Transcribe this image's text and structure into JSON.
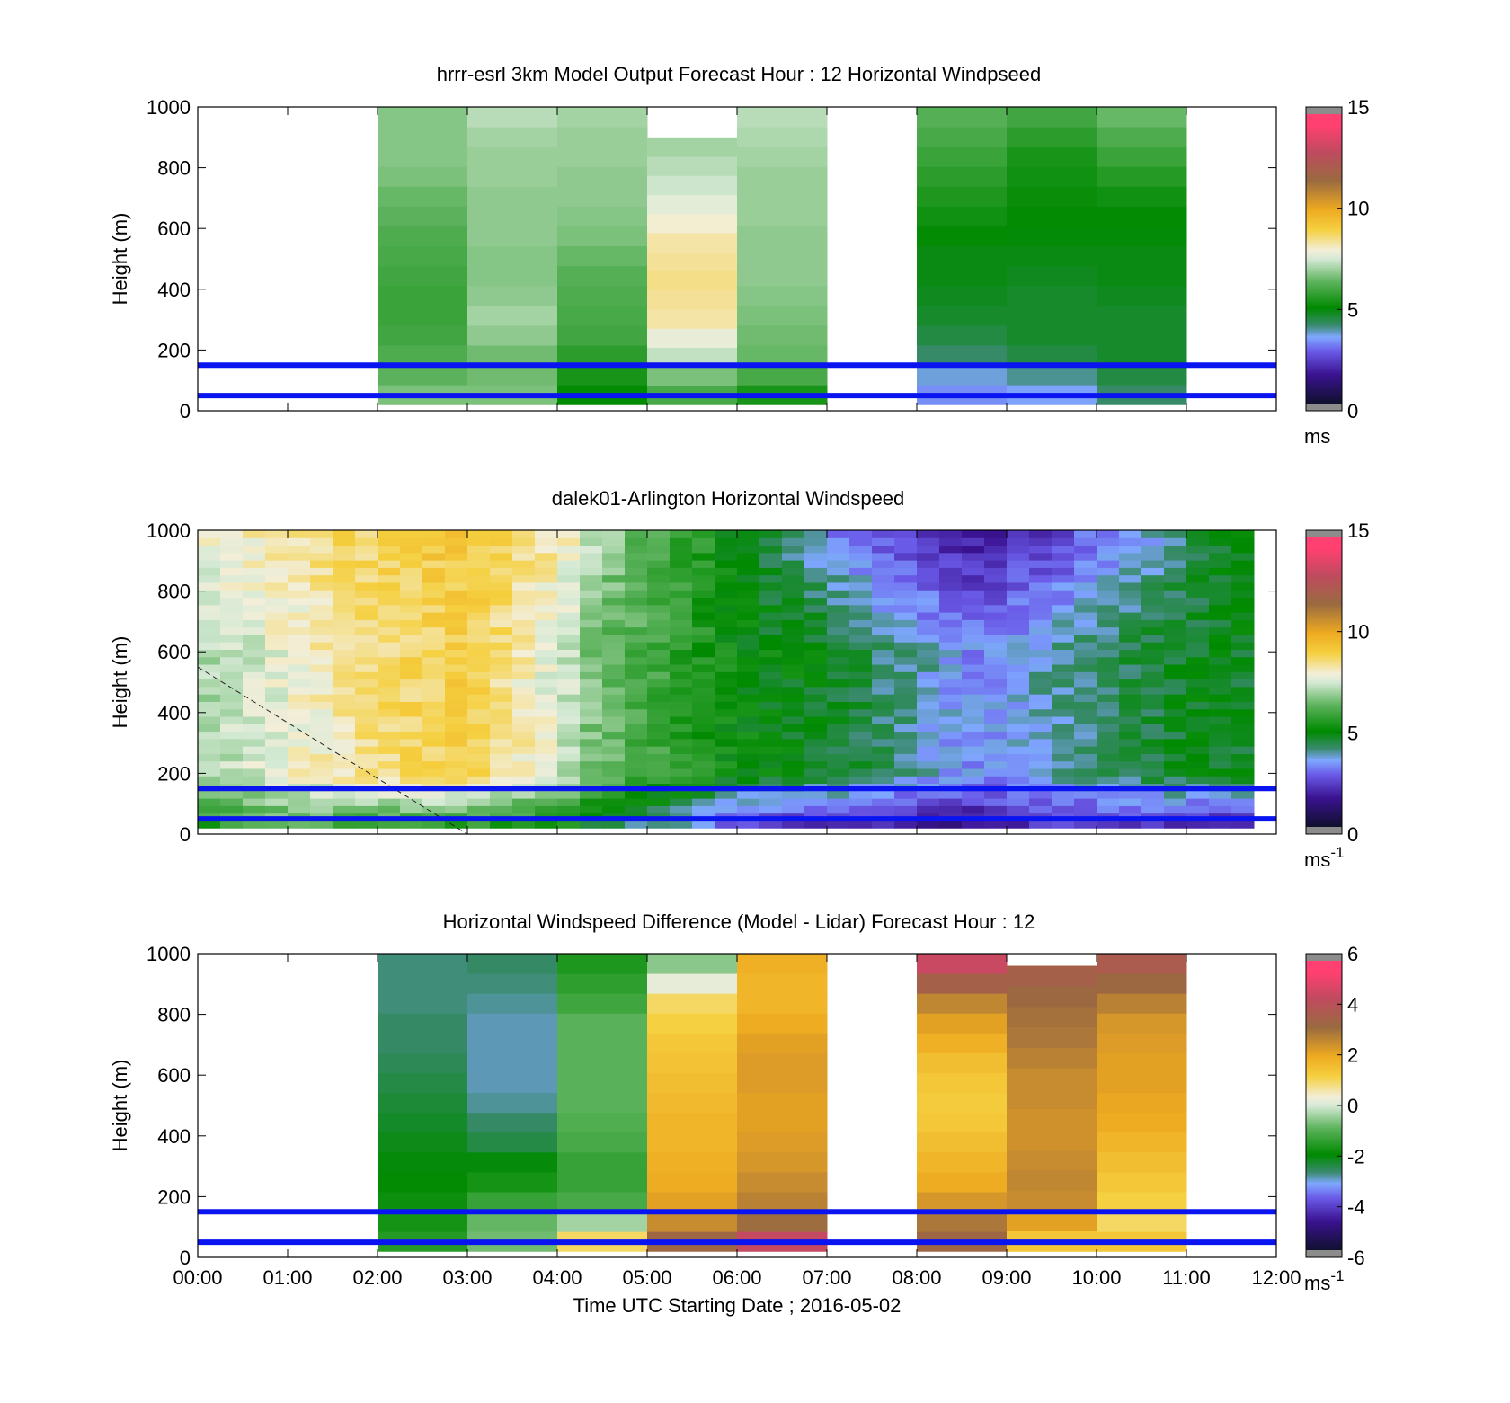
{
  "figure": {
    "xlabel": "Time UTC  Starting Date ; 2016-05-02",
    "x_tick_labels": [
      "00:00",
      "01:00",
      "02:00",
      "03:00",
      "04:00",
      "05:00",
      "06:00",
      "07:00",
      "08:00",
      "09:00",
      "10:00",
      "11:00",
      "12:00"
    ]
  },
  "chart_data": [
    {
      "type": "heatmap",
      "title": "hrrr-esrl 3km Model Output   Forecast Hour : 12 Horizontal Windpseed",
      "ylabel": "Height (m)",
      "xlim_hours": [
        0,
        12
      ],
      "ylim": [
        0,
        1000
      ],
      "y_ticks": [
        0,
        200,
        400,
        600,
        800,
        1000
      ],
      "colorbar": {
        "min": 0,
        "max": 15,
        "ticks": [
          0,
          5,
          10,
          15
        ],
        "unit": "ms",
        "unit_sup": ""
      },
      "reference_lines_m": [
        50,
        150
      ],
      "columns": [
        {
          "start": 2,
          "end": 3,
          "top": 1000,
          "bottom": 20,
          "values": [
            6.6,
            6.3,
            6.1,
            5.9,
            5.8,
            5.8,
            5.9,
            6.0,
            6.1,
            6.3,
            6.4,
            6.6,
            6.7,
            6.7,
            6.7
          ]
        },
        {
          "start": 3,
          "end": 4,
          "top": 1000,
          "bottom": 20,
          "values": [
            6.6,
            6.5,
            6.5,
            6.8,
            7.0,
            6.8,
            6.7,
            6.7,
            6.8,
            6.8,
            6.8,
            6.9,
            6.9,
            7.0,
            7.2
          ]
        },
        {
          "start": 4,
          "end": 5,
          "top": 1000,
          "bottom": 20,
          "values": [
            5.0,
            5.3,
            5.6,
            5.9,
            6.0,
            6.1,
            6.2,
            6.4,
            6.6,
            6.7,
            6.8,
            6.8,
            6.9,
            6.9,
            7.0
          ]
        },
        {
          "start": 5,
          "end": 6,
          "top": 900,
          "bottom": 20,
          "values": [
            6.0,
            6.6,
            7.3,
            7.8,
            8.3,
            8.4,
            8.5,
            8.4,
            8.3,
            8.0,
            7.7,
            7.4,
            7.2,
            7.0
          ]
        },
        {
          "start": 6,
          "end": 7,
          "top": 1000,
          "bottom": 20,
          "values": [
            5.3,
            6.0,
            6.4,
            6.5,
            6.6,
            6.7,
            6.8,
            6.8,
            6.8,
            6.9,
            6.9,
            6.9,
            7.0,
            7.1,
            7.2
          ]
        },
        {
          "start": 8,
          "end": 9,
          "top": 1000,
          "bottom": 20,
          "values": [
            3.2,
            3.6,
            4.1,
            4.4,
            4.6,
            4.7,
            4.8,
            4.8,
            5.0,
            5.2,
            5.4,
            5.6,
            5.8,
            6.0,
            6.2
          ]
        },
        {
          "start": 9,
          "end": 10,
          "top": 1000,
          "bottom": 20,
          "values": [
            3.4,
            3.9,
            4.4,
            4.6,
            4.6,
            4.6,
            4.7,
            4.8,
            4.9,
            5.0,
            5.1,
            5.2,
            5.3,
            5.6,
            5.9
          ]
        },
        {
          "start": 10,
          "end": 11,
          "top": 1000,
          "bottom": 20,
          "values": [
            4.1,
            4.4,
            4.6,
            4.6,
            4.6,
            4.7,
            4.8,
            4.8,
            4.9,
            5.0,
            5.2,
            5.5,
            5.8,
            6.1,
            6.4
          ]
        }
      ]
    },
    {
      "type": "heatmap",
      "title": "dalek01-Arlington  Horizontal Windspeed",
      "ylabel": "Height (m)",
      "xlim_hours": [
        0,
        12
      ],
      "ylim": [
        0,
        1000
      ],
      "y_ticks": [
        0,
        200,
        400,
        600,
        800,
        1000
      ],
      "colorbar": {
        "min": 0,
        "max": 15,
        "ticks": [
          0,
          5,
          10,
          15
        ],
        "unit": "ms",
        "unit_sup": "-1"
      },
      "reference_lines_m": [
        50,
        150
      ],
      "dashed_line": {
        "x_hours": [
          0,
          3
        ],
        "y_m": [
          550,
          0
        ]
      },
      "time_slices": {
        "start": 0,
        "end": 11.75,
        "count": 47,
        "top": 1000,
        "bottom": 20,
        "levels": 40
      },
      "profile_anchors": [
        {
          "t": 0.0,
          "low": 5.2,
          "mid": 7.0,
          "high": 7.8
        },
        {
          "t": 1.0,
          "low": 6.0,
          "mid": 7.8,
          "high": 8.4
        },
        {
          "t": 2.0,
          "low": 5.2,
          "mid": 8.6,
          "high": 8.9
        },
        {
          "t": 3.0,
          "low": 5.0,
          "mid": 9.0,
          "high": 9.3
        },
        {
          "t": 4.0,
          "low": 4.8,
          "mid": 7.6,
          "high": 8.3
        },
        {
          "t": 4.5,
          "low": 4.2,
          "mid": 6.4,
          "high": 7.0
        },
        {
          "t": 5.0,
          "low": 3.6,
          "mid": 6.0,
          "high": 6.2
        },
        {
          "t": 5.6,
          "low": 3.0,
          "mid": 5.4,
          "high": 5.6
        },
        {
          "t": 6.0,
          "low": 1.8,
          "mid": 5.0,
          "high": 4.8
        },
        {
          "t": 6.8,
          "low": 1.6,
          "mid": 4.8,
          "high": 3.6
        },
        {
          "t": 7.8,
          "low": 1.3,
          "mid": 4.0,
          "high": 2.2
        },
        {
          "t": 8.6,
          "low": 1.2,
          "mid": 3.2,
          "high": 1.5
        },
        {
          "t": 9.6,
          "low": 2.0,
          "mid": 3.8,
          "high": 2.4
        },
        {
          "t": 10.5,
          "low": 1.8,
          "mid": 4.4,
          "high": 3.4
        },
        {
          "t": 11.3,
          "low": 1.4,
          "mid": 4.8,
          "high": 4.5
        },
        {
          "t": 11.75,
          "low": 1.4,
          "mid": 4.6,
          "high": 4.8
        }
      ]
    },
    {
      "type": "heatmap",
      "title": "Horizontal Windspeed Difference (Model - Lidar) Forecast Hour : 12",
      "ylabel": "Height (m)",
      "xlim_hours": [
        0,
        12
      ],
      "ylim": [
        0,
        1000
      ],
      "y_ticks": [
        0,
        200,
        400,
        600,
        800,
        1000
      ],
      "colorbar": {
        "min": -6,
        "max": 6,
        "ticks": [
          -6,
          -4,
          -2,
          0,
          2,
          4,
          6
        ],
        "unit": "ms",
        "unit_sup": "-1"
      },
      "reference_lines_m": [
        50,
        150
      ],
      "columns": [
        {
          "start": 2,
          "end": 3,
          "top": 1000,
          "bottom": 20,
          "values": [
            -1.6,
            -1.8,
            -1.9,
            -2.0,
            -2.1,
            -2.2,
            -2.3,
            -2.4,
            -2.5,
            -2.6,
            -2.7,
            -2.7,
            -2.8,
            -2.8,
            -2.8
          ]
        },
        {
          "start": 3,
          "end": 4,
          "top": 1000,
          "bottom": 20,
          "values": [
            -0.8,
            -0.9,
            -1.4,
            -1.8,
            -2.1,
            -2.5,
            -2.7,
            -2.9,
            -3.0,
            -3.0,
            -3.0,
            -3.0,
            -2.9,
            -2.8,
            -2.7
          ]
        },
        {
          "start": 4,
          "end": 5,
          "top": 1000,
          "bottom": 20,
          "values": [
            1.0,
            -0.4,
            -1.2,
            -1.4,
            -1.4,
            -1.2,
            -1.1,
            -1.0,
            -1.0,
            -1.0,
            -1.0,
            -1.0,
            -1.3,
            -1.5,
            -1.7
          ]
        },
        {
          "start": 5,
          "end": 6,
          "top": 1000,
          "bottom": 20,
          "values": [
            3.4,
            2.6,
            2.2,
            2.0,
            1.9,
            1.8,
            1.8,
            1.7,
            1.6,
            1.5,
            1.4,
            1.2,
            1.0,
            0.2,
            -0.6
          ]
        },
        {
          "start": 6,
          "end": 7,
          "top": 1000,
          "bottom": 20,
          "values": [
            4.5,
            3.2,
            2.8,
            2.6,
            2.4,
            2.3,
            2.2,
            2.2,
            2.3,
            2.3,
            2.2,
            2.0,
            1.8,
            1.8,
            1.9
          ]
        },
        {
          "start": 8,
          "end": 9,
          "top": 1000,
          "bottom": 20,
          "values": [
            3.4,
            3.0,
            2.4,
            2.0,
            1.8,
            1.6,
            1.4,
            1.3,
            1.4,
            1.6,
            1.9,
            2.2,
            2.7,
            3.6,
            4.6
          ]
        },
        {
          "start": 9,
          "end": 10,
          "top": 960,
          "bottom": 20,
          "values": [
            1.4,
            2.2,
            2.6,
            2.7,
            2.6,
            2.5,
            2.5,
            2.6,
            2.6,
            2.8,
            3.0,
            3.1,
            3.3,
            3.6
          ]
        },
        {
          "start": 10,
          "end": 11,
          "top": 1000,
          "bottom": 20,
          "values": [
            1.4,
            1.0,
            1.2,
            1.4,
            1.6,
            1.8,
            2.0,
            2.1,
            2.2,
            2.2,
            2.3,
            2.4,
            2.8,
            3.3,
            3.8
          ]
        }
      ]
    }
  ]
}
